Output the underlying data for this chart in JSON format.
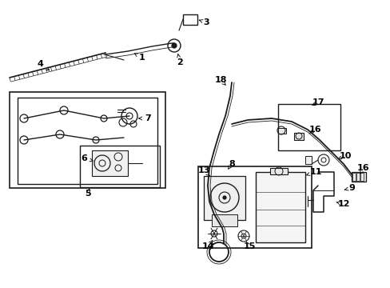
{
  "bg_color": "#ffffff",
  "line_color": "#1a1a1a",
  "label_color": "#000000",
  "figsize": [
    4.89,
    3.6
  ],
  "dpi": 100,
  "xlim": [
    0,
    489
  ],
  "ylim": [
    0,
    360
  ]
}
